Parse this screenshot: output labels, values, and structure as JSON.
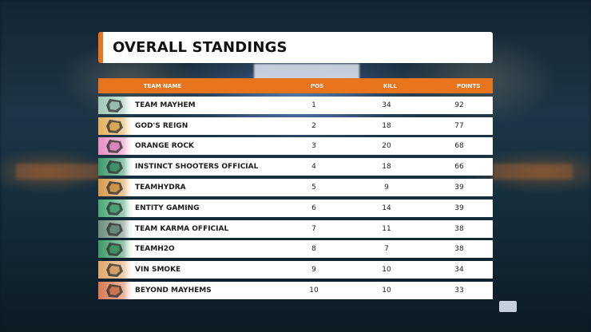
{
  "title": "OVERALL STANDINGS",
  "columns": {
    "team": "TEAM NAME",
    "pos": "POS",
    "kill": "KILL",
    "points": "POINTS"
  },
  "rows": [
    {
      "team": "TEAM MAYHEM",
      "pos": "1",
      "kill": "34",
      "points": "92",
      "logo_color": "#9fc9b6",
      "logo_icon": "mayhem-logo-icon"
    },
    {
      "team": "GOD'S REIGN",
      "pos": "2",
      "kill": "18",
      "points": "77",
      "logo_color": "#e3b25c",
      "logo_icon": "gods-reign-logo-icon"
    },
    {
      "team": "ORANGE ROCK",
      "pos": "3",
      "kill": "20",
      "points": "68",
      "logo_color": "#e98fc4",
      "logo_icon": "orange-rock-logo-icon"
    },
    {
      "team": "INSTINCT SHOOTERS OFFICIAL",
      "pos": "4",
      "kill": "18",
      "points": "66",
      "logo_color": "#3e9a6e",
      "logo_icon": "instinct-shooters-logo-icon"
    },
    {
      "team": "TEAMHYDRA",
      "pos": "5",
      "kill": "9",
      "points": "39",
      "logo_color": "#d99a4a",
      "logo_icon": "teamhydra-logo-icon"
    },
    {
      "team": "ENTITY GAMING",
      "pos": "6",
      "kill": "14",
      "points": "39",
      "logo_color": "#4aa879",
      "logo_icon": "entity-gaming-logo-icon"
    },
    {
      "team": "TEAM KARMA OFFICIAL",
      "pos": "7",
      "kill": "11",
      "points": "38",
      "logo_color": "#6f8f7f",
      "logo_icon": "team-karma-logo-icon"
    },
    {
      "team": "TEAMH2O",
      "pos": "8",
      "kill": "7",
      "points": "38",
      "logo_color": "#3f9a68",
      "logo_icon": "teamh2o-logo-icon"
    },
    {
      "team": "VIN SMOKE",
      "pos": "9",
      "kill": "10",
      "points": "34",
      "logo_color": "#e1a86a",
      "logo_icon": "vin-smoke-logo-icon"
    },
    {
      "team": "BEYOND MAYHEMS",
      "pos": "10",
      "kill": "10",
      "points": "33",
      "logo_color": "#d87a52",
      "logo_icon": "beyond-mayhems-logo-icon"
    }
  ],
  "colors": {
    "accent": "#e8741e",
    "row_background": "#ffffff",
    "text": "#1c1c1c"
  }
}
